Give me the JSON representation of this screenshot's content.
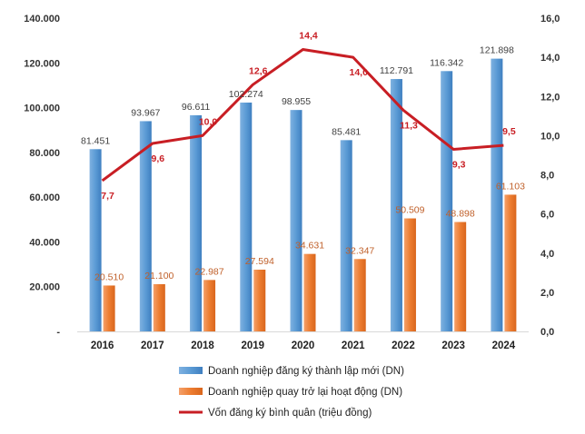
{
  "chart_data": {
    "type": "bar+line",
    "categories": [
      "2016",
      "2017",
      "2018",
      "2019",
      "2020",
      "2021",
      "2022",
      "2023",
      "2024"
    ],
    "series": [
      {
        "name": "Doanh nghiệp đăng ký thành lập mới (DN)",
        "kind": "bar",
        "axis": "left",
        "color": "#5b9bd5",
        "values": [
          81451,
          93967,
          96611,
          102274,
          98955,
          85481,
          112791,
          116342,
          121898
        ],
        "labels": [
          "81.451",
          "93.967",
          "96.611",
          "102.274",
          "98.955",
          "85.481",
          "112.791",
          "116.342",
          "121.898"
        ]
      },
      {
        "name": "Doanh nghiệp quay trở lại hoạt động (DN)",
        "kind": "bar",
        "axis": "left",
        "color": "#ed7d31",
        "values": [
          20510,
          21100,
          22987,
          27594,
          34631,
          32347,
          50509,
          48898,
          61103
        ],
        "labels": [
          "20.510",
          "21.100",
          "22.987",
          "27.594",
          "34.631",
          "32.347",
          "50.509",
          "48.898",
          "61.103"
        ]
      },
      {
        "name": "Vốn đăng ký bình quân (triệu đồng)",
        "kind": "line",
        "axis": "right",
        "color": "#c81e24",
        "values": [
          7.7,
          9.6,
          10.0,
          12.6,
          14.4,
          14.0,
          11.3,
          9.3,
          9.5
        ],
        "labels": [
          "7,7",
          "9,6",
          "10,0",
          "12,6",
          "14,4",
          "14,0",
          "11,3",
          "9,3",
          "9,5"
        ]
      }
    ],
    "left_axis": {
      "ylim": [
        0,
        140000
      ],
      "ticks": [
        "-",
        "20.000",
        "40.000",
        "60.000",
        "80.000",
        "100.000",
        "120.000",
        "140.000"
      ]
    },
    "right_axis": {
      "ylim": [
        0,
        16
      ],
      "ticks": [
        "0,0",
        "2,0",
        "4,0",
        "6,0",
        "8,0",
        "10,0",
        "12,0",
        "14,0",
        "16,0"
      ]
    },
    "grid": false,
    "legend_position": "bottom"
  }
}
